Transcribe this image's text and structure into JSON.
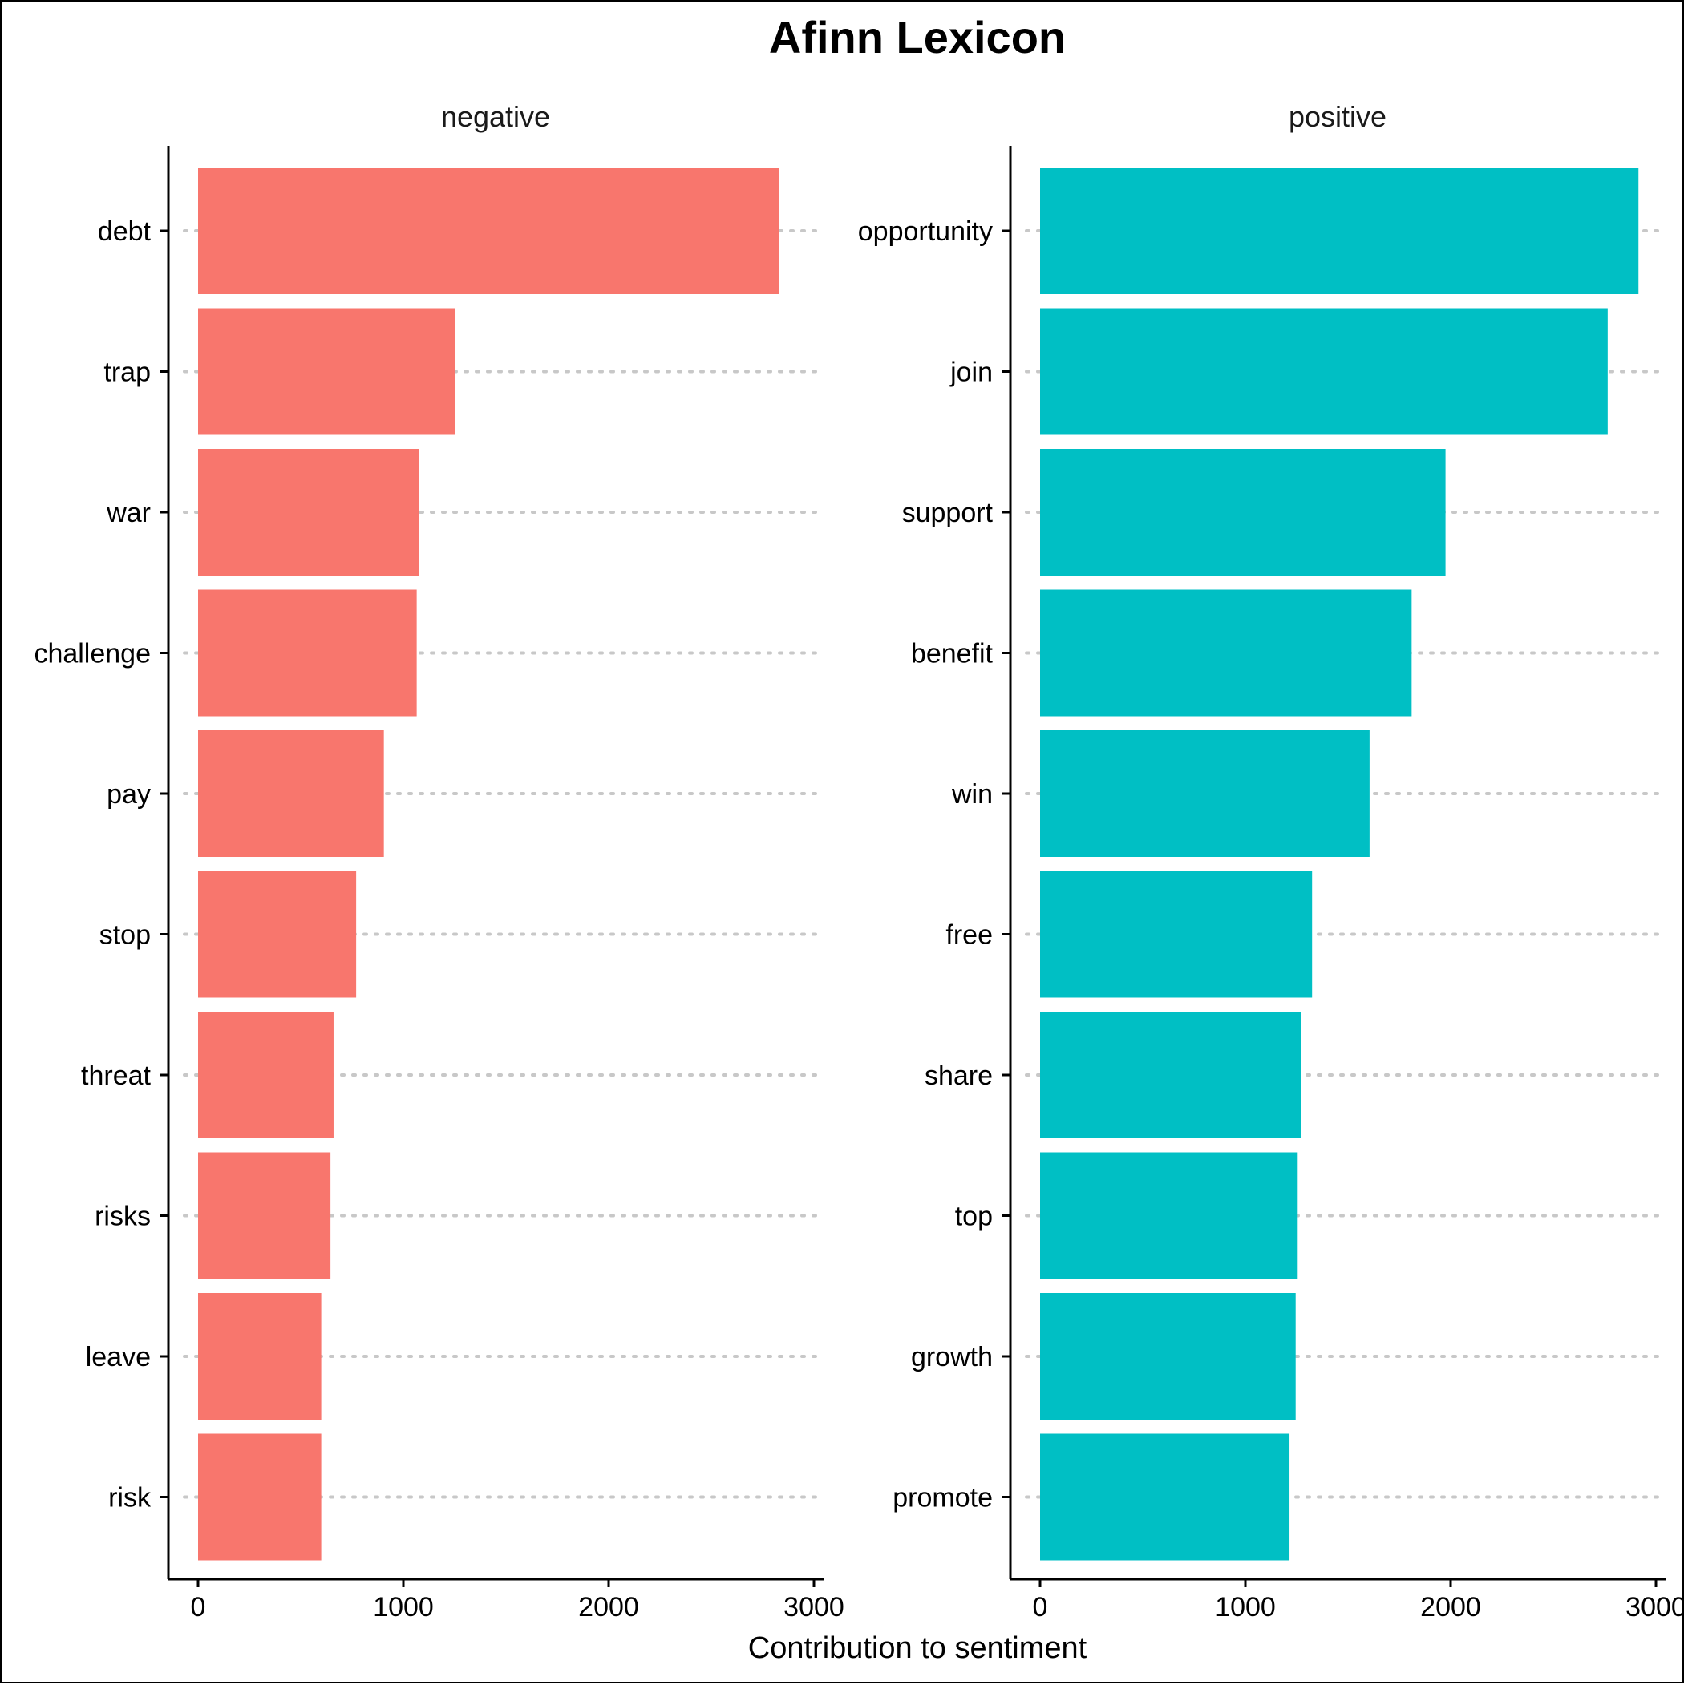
{
  "chart_data": {
    "type": "bar",
    "orientation": "horizontal",
    "title": "Afinn Lexicon",
    "xlabel": "Contribution to sentiment",
    "ylabel": "",
    "xlim": [
      0,
      3000
    ],
    "x_ticks": [
      0,
      1000,
      2000,
      3000
    ],
    "x_tick_labels": [
      "0",
      "1000",
      "2000",
      "3000"
    ],
    "grid": "dotted horizontal lines at each category",
    "panels": [
      {
        "name": "negative",
        "color": "#F8766D",
        "categories": [
          "debt",
          "trap",
          "war",
          "challenge",
          "pay",
          "stop",
          "threat",
          "risks",
          "leave",
          "risk"
        ],
        "values": [
          2830,
          1250,
          1075,
          1065,
          905,
          770,
          660,
          645,
          600,
          600
        ]
      },
      {
        "name": "positive",
        "color": "#00BFC4",
        "categories": [
          "opportunity",
          "join",
          "support",
          "benefit",
          "win",
          "free",
          "share",
          "top",
          "growth",
          "promote"
        ],
        "values": [
          2915,
          2765,
          1975,
          1810,
          1605,
          1325,
          1270,
          1255,
          1245,
          1215
        ]
      }
    ]
  }
}
